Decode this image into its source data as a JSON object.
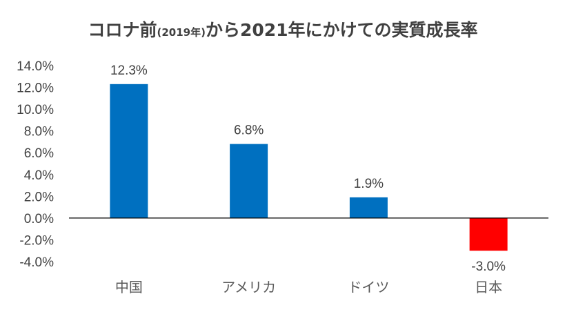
{
  "chart_data": {
    "type": "bar",
    "title": {
      "part1": "コロナ前",
      "part2": "(2019年)",
      "part3": "から2021年にかけての実質成長率"
    },
    "categories": [
      "中国",
      "アメリカ",
      "ドイツ",
      "日本"
    ],
    "values": [
      12.3,
      6.8,
      1.9,
      -3.0
    ],
    "data_labels": [
      "12.3%",
      "6.8%",
      "1.9%",
      "-3.0%"
    ],
    "y_ticks": [
      14.0,
      12.0,
      10.0,
      8.0,
      6.0,
      4.0,
      2.0,
      0.0,
      -2.0,
      -4.0
    ],
    "y_tick_labels": [
      "14.0%",
      "12.0%",
      "10.0%",
      "8.0%",
      "6.0%",
      "4.0%",
      "2.0%",
      "0.0%",
      "-2.0%",
      "-4.0%"
    ],
    "ylim": [
      -4,
      14
    ],
    "xlabel": "",
    "ylabel": "",
    "grid": false,
    "legend": "none",
    "colors": {
      "positive": "#0070C0",
      "negative": "#FF0000",
      "axis": "#000000"
    }
  }
}
